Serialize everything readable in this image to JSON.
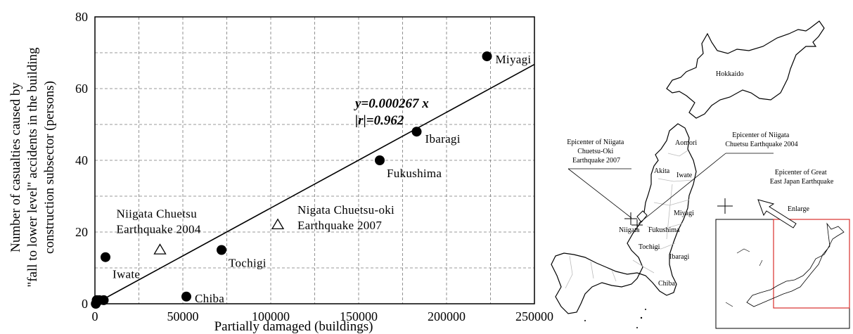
{
  "chart_data": {
    "type": "scatter",
    "title": "",
    "xlabel": "Partially damaged (buildings)",
    "ylabel_lines": [
      "Number of casualties caused by",
      "\"fall to lower level\" accidents in the building",
      "construction subsector (persons)"
    ],
    "xlim": [
      0,
      250000
    ],
    "ylim": [
      0,
      80
    ],
    "x_ticks": [
      0,
      50000,
      100000,
      150000,
      200000,
      250000
    ],
    "x_tick_labels": [
      "0",
      "50000",
      "100000",
      "150000",
      "200000",
      "250000"
    ],
    "y_ticks": [
      0,
      20,
      40,
      60,
      80
    ],
    "y_tick_labels": [
      "0",
      "20",
      "40",
      "60",
      "80"
    ],
    "grid": true,
    "series": [
      {
        "marker": "filled-circle",
        "points": [
          {
            "x": 223000,
            "y": 69,
            "label": "Miyagi"
          },
          {
            "x": 183000,
            "y": 48,
            "label": "Ibaragi"
          },
          {
            "x": 162000,
            "y": 40,
            "label": "Fukushima"
          },
          {
            "x": 72000,
            "y": 15,
            "label": "Tochigi"
          },
          {
            "x": 52000,
            "y": 2,
            "label": "Chiba"
          },
          {
            "x": 6000,
            "y": 13,
            "label": "Iwate"
          },
          {
            "x": 5000,
            "y": 1,
            "label": ""
          },
          {
            "x": 2500,
            "y": 1,
            "label": ""
          },
          {
            "x": 1000,
            "y": 1,
            "label": ""
          },
          {
            "x": 500,
            "y": 0,
            "label": ""
          }
        ]
      },
      {
        "marker": "open-triangle",
        "points": [
          {
            "x": 37000,
            "y": 15,
            "label_lines": [
              "Niigata Chuetsu",
              "Earthquake 2004"
            ]
          },
          {
            "x": 104000,
            "y": 22,
            "label_lines": [
              "Nigata Chuetsu-oki",
              "Earthquake 2007"
            ]
          }
        ]
      }
    ],
    "regression": {
      "slope": 0.000267,
      "x_range": [
        0,
        250000
      ],
      "equation_label": "y=0.000267 x",
      "r_label": "|r|=0.962"
    }
  },
  "map": {
    "labels": {
      "hokkaido": "Hokkaido",
      "aomori": "Aomori",
      "akita": "Akita",
      "iwate": "Iwate",
      "miyagi": "Miyagi",
      "niigata": "Niigata",
      "fukushima": "Fukushima",
      "tochigi": "Tochigi",
      "ibaragi": "Ibaragi",
      "chiba": "Chiba",
      "enlarge": "Enlarge"
    },
    "callouts": {
      "chuetsu_oki_2007": [
        "Epicenter of Niigata",
        "Chuetsu-Oki",
        "Earthquake 2007"
      ],
      "chuetsu_2004": [
        "Epicenter of Niigata",
        "Chuetsu Earthquake 2004"
      ],
      "great_east_japan": [
        "Epicenter of Great",
        "East Japan Earthquake"
      ]
    },
    "colors": {
      "inset_highlight": "#d9302c",
      "outline": "#000000",
      "boundaries": "#bbbbbb"
    }
  }
}
